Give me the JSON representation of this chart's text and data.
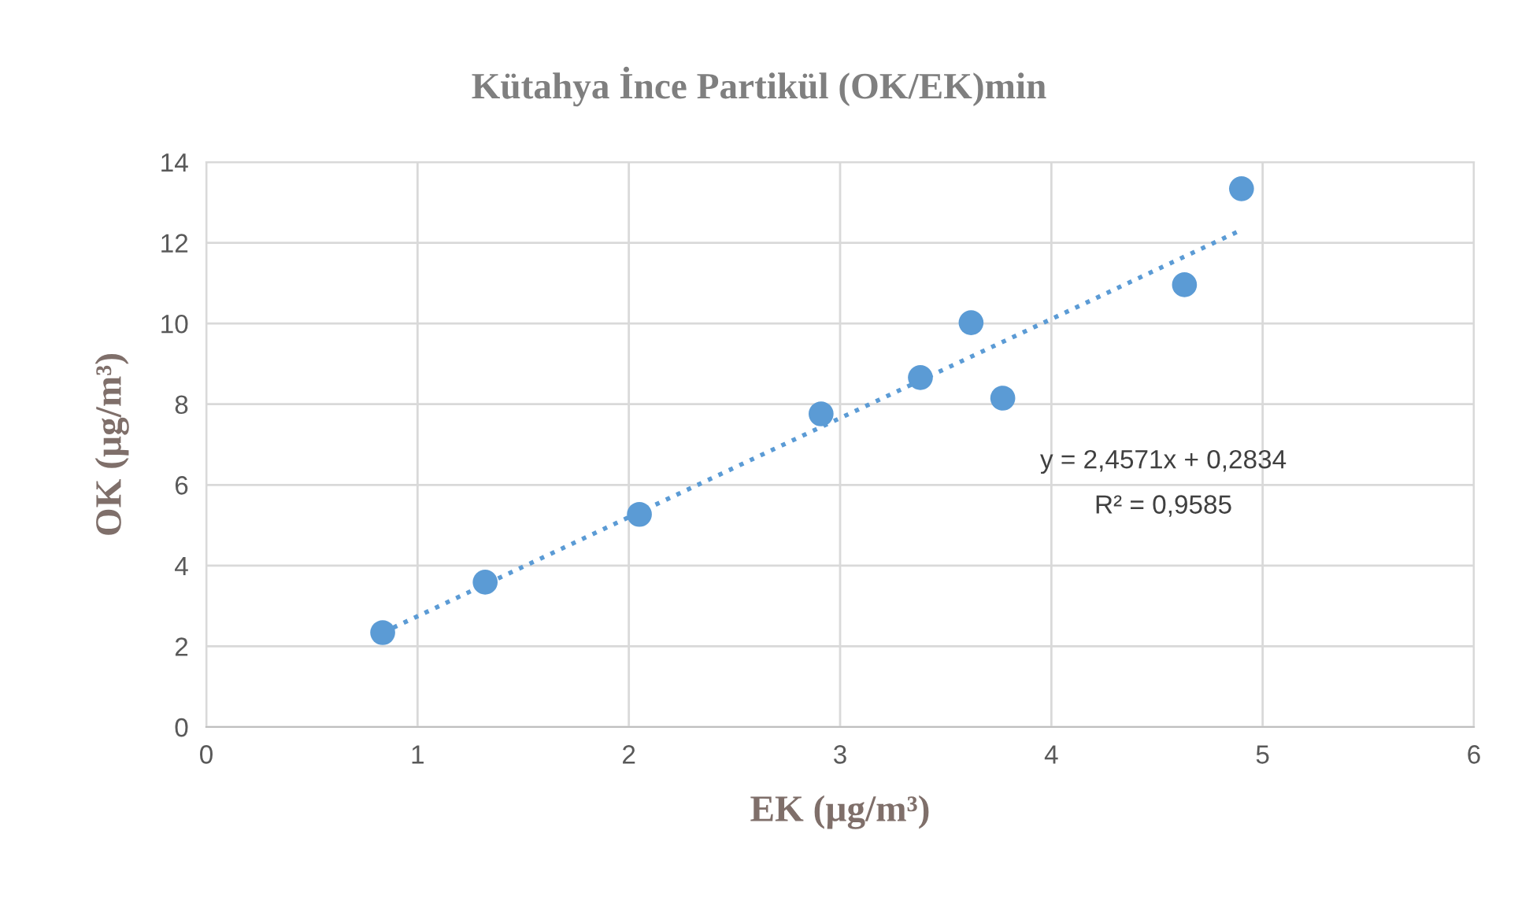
{
  "chart_data": {
    "type": "scatter",
    "title": "Kütahya İnce Partikül (OK/EK)min",
    "xlabel": "EK (µg/m³)",
    "ylabel": "OK (µg/m³)",
    "series": [
      {
        "color": "#5b9bd5",
        "x": [
          0.835,
          1.32,
          2.05,
          2.91,
          3.38,
          3.62,
          3.77,
          4.63,
          4.9
        ],
        "values": [
          2.34,
          3.59,
          5.27,
          7.76,
          8.66,
          10.02,
          8.15,
          10.96,
          13.34
        ],
        "marker": "circle"
      },
      {
        "type": "line",
        "color": "#5b9bd5",
        "x": [
          0.835,
          4.9
        ],
        "values": [
          2.34,
          12.32
        ],
        "line_style": "dotted",
        "marker": "none"
      }
    ],
    "annotations": [
      "y = 2,4571x + 0,2834",
      "R² = 0,9585"
    ],
    "xlim": [
      0,
      6
    ],
    "xticks": [
      0,
      1,
      2,
      3,
      4,
      5,
      6
    ],
    "ylim": [
      0,
      14
    ],
    "yticks": [
      0,
      2,
      4,
      6,
      8,
      10,
      12,
      14
    ],
    "grid": true,
    "legend": false
  }
}
